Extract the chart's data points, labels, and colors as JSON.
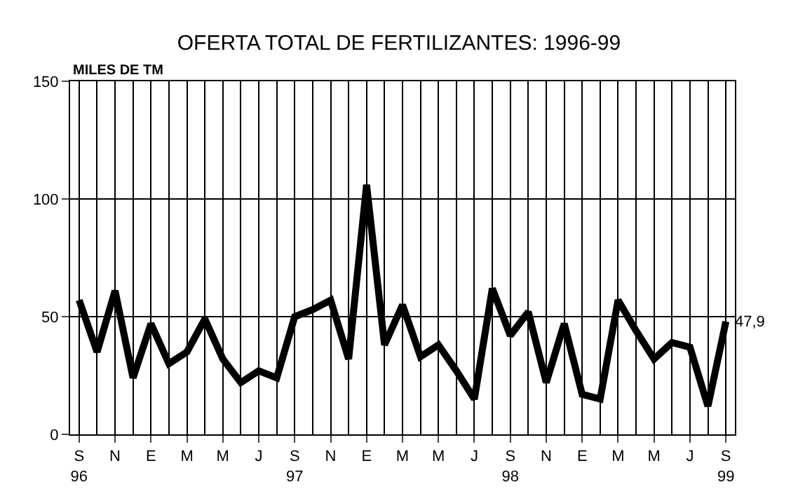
{
  "chart_data": {
    "type": "line",
    "title": "OFERTA TOTAL DE FERTILIZANTES: 1996-99",
    "ylabel": "MILES DE TM",
    "categories": [
      "S\n96",
      null,
      "N",
      null,
      "E",
      null,
      "M",
      null,
      "M",
      null,
      "J",
      null,
      "S\n97",
      null,
      "N",
      null,
      "E",
      null,
      "M",
      null,
      "M",
      null,
      "J",
      null,
      "S\n98",
      null,
      "N",
      null,
      "E",
      null,
      "M",
      null,
      "M",
      null,
      "J",
      null,
      "S\n99"
    ],
    "series": [
      {
        "color": "#000000",
        "values": [
          57,
          35,
          61,
          24,
          47,
          30,
          35,
          49,
          32,
          22,
          27,
          24,
          50,
          53,
          57,
          32,
          106,
          38,
          55,
          33,
          38,
          27,
          15,
          62,
          42,
          52,
          22,
          47,
          17,
          15,
          57,
          44,
          32,
          39,
          37,
          12,
          47.9
        ],
        "value_labels": [
          null,
          null,
          null,
          null,
          null,
          null,
          null,
          null,
          null,
          null,
          null,
          null,
          null,
          null,
          null,
          null,
          null,
          null,
          null,
          null,
          null,
          null,
          null,
          null,
          null,
          null,
          null,
          null,
          null,
          null,
          null,
          null,
          null,
          null,
          null,
          null,
          "47,9"
        ]
      }
    ],
    "ylim": [
      0,
      150
    ],
    "yticks": [
      0,
      50,
      100,
      150
    ],
    "grid": true,
    "legend": false,
    "marker": "none",
    "line_style": "solid"
  }
}
